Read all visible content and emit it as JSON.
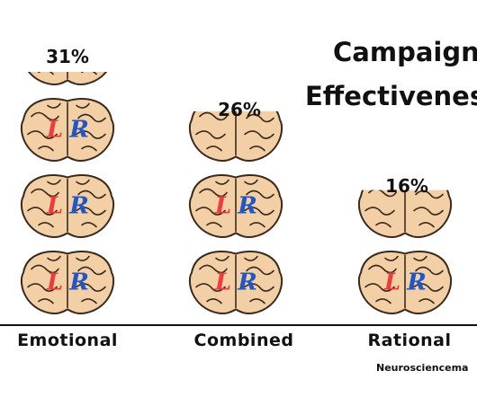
{
  "chart_data": {
    "type": "bar",
    "title_lines": [
      "Campaign",
      "Effectivenes"
    ],
    "categories": [
      "Emotional",
      "Combined",
      "Rational"
    ],
    "values": [
      31,
      26,
      16
    ],
    "value_labels": [
      "31%",
      "26%",
      "16%"
    ],
    "unit": "%",
    "pictogram_icon": "brain-icon",
    "pictogram_letters": [
      "L",
      "R"
    ],
    "grid": false,
    "legend": "none"
  },
  "source": "Neurosciencema",
  "colors": {
    "brain_fill": "#f3cfa6",
    "brain_stroke": "#3a2a1e",
    "left_letter": "#ee3b3b",
    "right_letter": "#1f57c8",
    "axis": "#111111",
    "text": "#111111"
  }
}
